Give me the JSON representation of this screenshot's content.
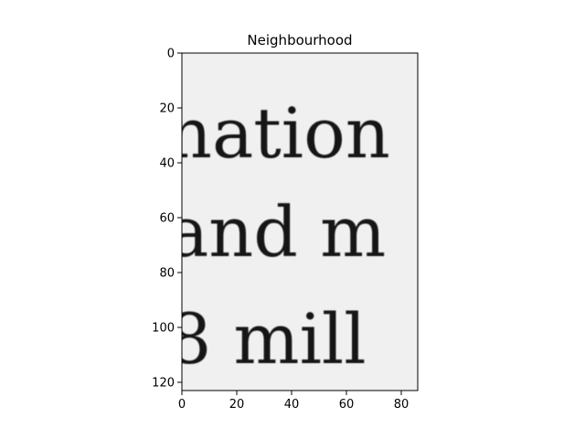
{
  "figure": {
    "title": "Neighbourhood"
  },
  "image_panel": {
    "colormap": "gray",
    "background_color": "#f0f0f0",
    "ink_color": "#161616",
    "lines": [
      {
        "text": "nation",
        "baseline_row": 38
      },
      {
        "text": "and m",
        "baseline_row": 74
      },
      {
        "text": "8 mill",
        "baseline_row": 113
      }
    ],
    "x_range": [
      0,
      86
    ],
    "y_range": [
      123,
      0
    ]
  },
  "axes": {
    "x_ticks": [
      {
        "value": 0,
        "label": "0"
      },
      {
        "value": 20,
        "label": "20"
      },
      {
        "value": 40,
        "label": "40"
      },
      {
        "value": 60,
        "label": "60"
      },
      {
        "value": 80,
        "label": "80"
      }
    ],
    "y_ticks": [
      {
        "value": 0,
        "label": "0"
      },
      {
        "value": 20,
        "label": "20"
      },
      {
        "value": 40,
        "label": "40"
      },
      {
        "value": 60,
        "label": "60"
      },
      {
        "value": 80,
        "label": "80"
      },
      {
        "value": 100,
        "label": "100"
      },
      {
        "value": 120,
        "label": "120"
      }
    ]
  }
}
